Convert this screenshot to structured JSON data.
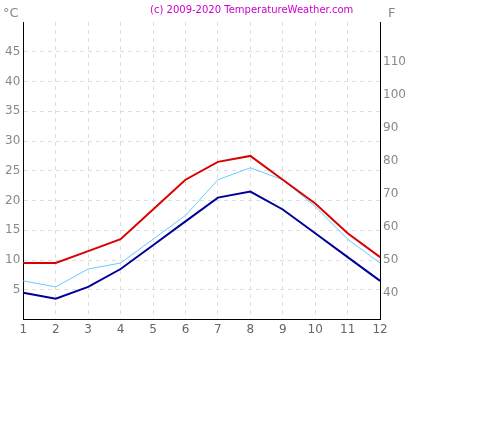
{
  "chart_data": {
    "type": "line",
    "title": "(c) 2009-2020 TemperatureWeather.com",
    "ylabel": "°C",
    "y2label": "F",
    "categories": [
      "1",
      "2",
      "3",
      "4",
      "5",
      "6",
      "7",
      "8",
      "9",
      "10",
      "11",
      "12"
    ],
    "series": [
      {
        "color": "#dd0000",
        "values": [
          9.5,
          9.5,
          11.5,
          13.5,
          18.5,
          23.5,
          26.5,
          27.5,
          23.5,
          19.5,
          14.5,
          10.5
        ]
      },
      {
        "color": "#66ccff",
        "values": [
          6.5,
          5.5,
          8.5,
          9.5,
          13.5,
          17.5,
          23.5,
          25.5,
          23.5,
          19,
          13.5,
          9.5
        ]
      },
      {
        "color": "#000099",
        "values": [
          4.5,
          3.5,
          5.5,
          8.5,
          12.5,
          16.5,
          20.5,
          21.5,
          18.5,
          14.5,
          10.5,
          6.5
        ]
      }
    ],
    "ylim": [
      0,
      50
    ],
    "yticks": [
      5,
      10,
      15,
      20,
      25,
      30,
      35,
      40,
      45
    ],
    "y2lim": [
      32,
      122
    ],
    "y2ticks": [
      40,
      50,
      60,
      70,
      80,
      90,
      100,
      110
    ],
    "grid": true
  }
}
